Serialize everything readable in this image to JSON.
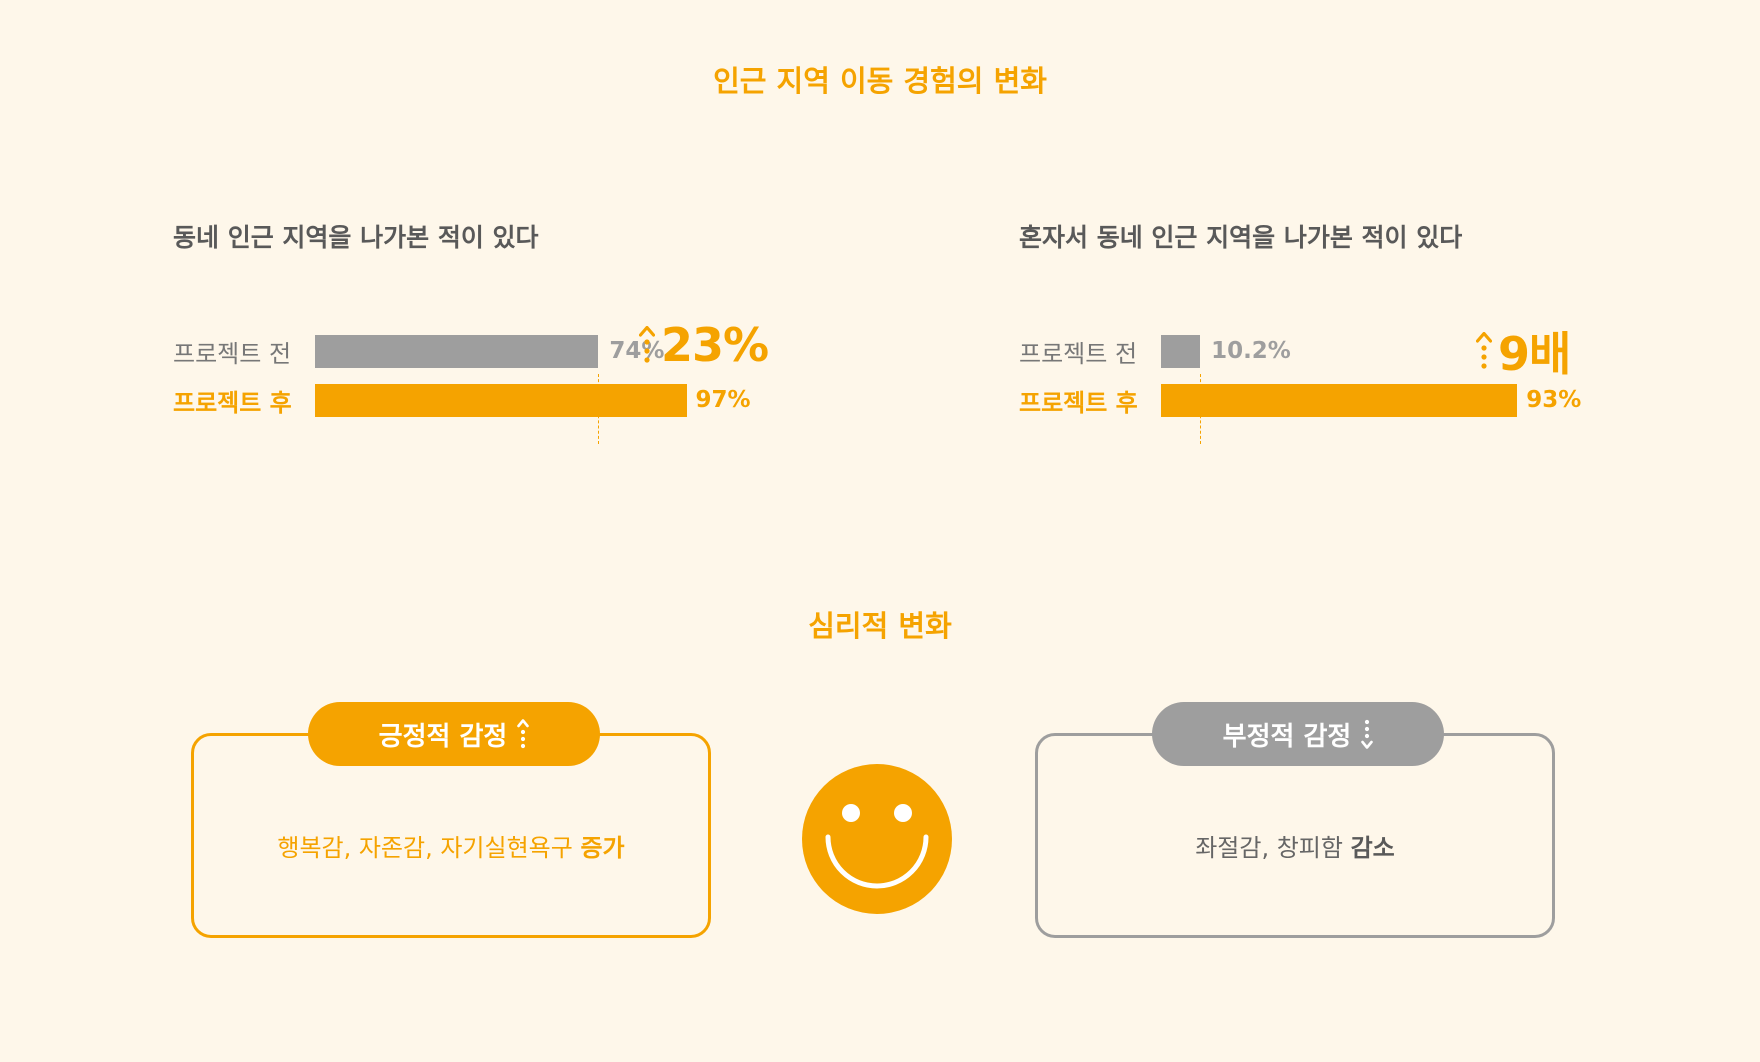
{
  "section1_title": "인근 지역 이동 경험의 변화",
  "section2_title": "심리적 변화",
  "colors": {
    "accent": "#f5a300",
    "gray": "#9e9e9e",
    "background": "#fef7ea"
  },
  "chart_data": [
    {
      "type": "bar",
      "title": "동네 인근 지역을 나가본 적이 있다",
      "categories": [
        "프로젝트 전",
        "프로젝트 후"
      ],
      "values": [
        74,
        97
      ],
      "value_labels": [
        "74%",
        "97%"
      ],
      "unit": "%",
      "change": {
        "direction": "up",
        "label": "23%"
      }
    },
    {
      "type": "bar",
      "title": "혼자서 동네 인근 지역을 나가본 적이 있다",
      "categories": [
        "프로젝트 전",
        "프로젝트 후"
      ],
      "values": [
        10.2,
        93
      ],
      "value_labels": [
        "10.2%",
        "93%"
      ],
      "unit": "%",
      "change": {
        "direction": "up",
        "label": "9배"
      }
    }
  ],
  "cards": {
    "positive": {
      "label": "긍정적 감정",
      "arrow": "up",
      "body": "행복감, 자존감, 자기실현욕구 ",
      "emphasis": "증가"
    },
    "negative": {
      "label": "부정적 감정",
      "arrow": "down",
      "body": "좌절감, 창피함 ",
      "emphasis": "감소"
    }
  },
  "center_icon": "smiley-face-icon"
}
